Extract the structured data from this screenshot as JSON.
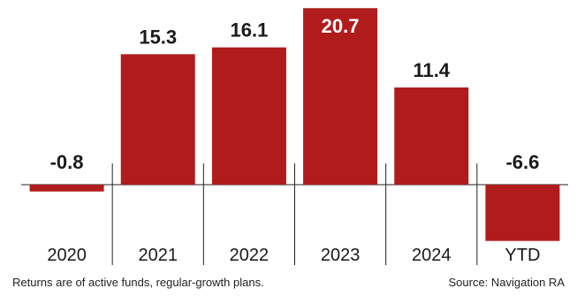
{
  "chart_data": {
    "type": "bar",
    "categories": [
      "2020",
      "2021",
      "2022",
      "2023",
      "2024",
      "YTD"
    ],
    "values": [
      -0.8,
      15.3,
      16.1,
      20.7,
      11.4,
      -6.6
    ],
    "value_labels": [
      "-0.8",
      "15.3",
      "16.1",
      "20.7",
      "11.4",
      "-6.6"
    ],
    "ylim": [
      -8,
      21
    ],
    "grid": false,
    "bar_color": "#b01c1c",
    "highlight_index": 3,
    "highlight_label_color": "#ffffff",
    "label_color": "#1a1a1a",
    "title": "",
    "xlabel": "",
    "ylabel": ""
  },
  "footnote": {
    "note": "Returns are of active funds, regular-growth plans.",
    "source": "Source: Navigation RA"
  }
}
